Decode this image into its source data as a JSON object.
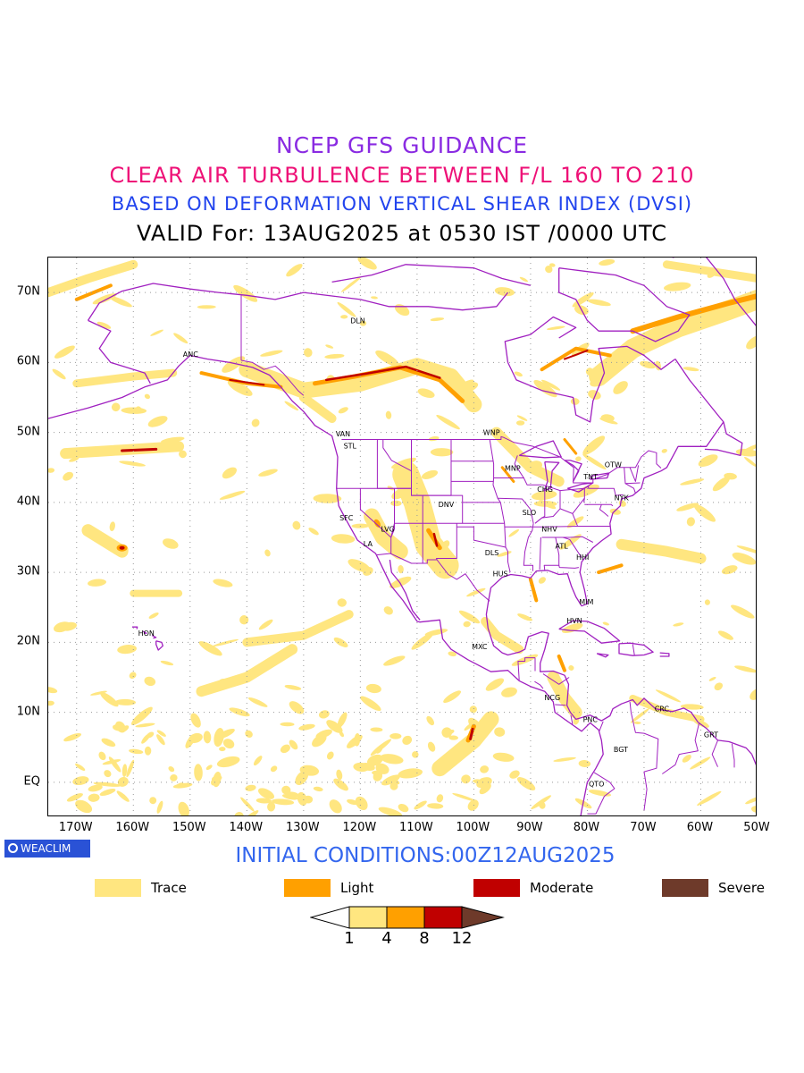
{
  "titles": {
    "line1": "NCEP GFS GUIDANCE",
    "line2": "CLEAR AIR TURBULENCE BETWEEN F/L 160 TO 210",
    "line3": "BASED ON DEFORMATION VERTICAL SHEAR INDEX (DVSI)",
    "line4": "VALID For: 13AUG2025 at 0530 IST /0000 UTC"
  },
  "colors": {
    "title1": "#8a2be2",
    "title2": "#ee1177",
    "title3": "#2244ee",
    "boundaries": "#a020c0",
    "trace": "#ffe680",
    "light": "#ffa000",
    "moderate": "#c00000",
    "severe": "#6e3a2a",
    "badge": "#2a52d6",
    "initial": "#3366ee"
  },
  "map": {
    "lon_range": [
      -175,
      -50
    ],
    "lat_range": [
      -5,
      75
    ],
    "grid": true,
    "lat_labels": [
      {
        "lat": 70,
        "text": "70N"
      },
      {
        "lat": 60,
        "text": "60N"
      },
      {
        "lat": 50,
        "text": "50N"
      },
      {
        "lat": 40,
        "text": "40N"
      },
      {
        "lat": 30,
        "text": "30N"
      },
      {
        "lat": 20,
        "text": "20N"
      },
      {
        "lat": 10,
        "text": "10N"
      },
      {
        "lat": 0,
        "text": "EQ"
      }
    ],
    "lon_labels": [
      {
        "lon": -170,
        "text": "170W"
      },
      {
        "lon": -160,
        "text": "160W"
      },
      {
        "lon": -150,
        "text": "150W"
      },
      {
        "lon": -140,
        "text": "140W"
      },
      {
        "lon": -130,
        "text": "130W"
      },
      {
        "lon": -120,
        "text": "120W"
      },
      {
        "lon": -110,
        "text": "110W"
      },
      {
        "lon": -100,
        "text": "100W"
      },
      {
        "lon": -90,
        "text": "90W"
      },
      {
        "lon": -80,
        "text": "80W"
      },
      {
        "lon": -70,
        "text": "70W"
      },
      {
        "lon": -60,
        "text": "60W"
      },
      {
        "lon": -50,
        "text": "50W"
      }
    ],
    "cities": [
      {
        "code": "DLN",
        "lon": -120.5,
        "lat": 66.0
      },
      {
        "code": "ANC",
        "lon": -150.0,
        "lat": 61.2
      },
      {
        "code": "VAN",
        "lon": -123.1,
        "lat": 49.8
      },
      {
        "code": "STL",
        "lon": -121.7,
        "lat": 48.1
      },
      {
        "code": "WNP",
        "lon": -97.1,
        "lat": 50.0
      },
      {
        "code": "MNP",
        "lon": -93.3,
        "lat": 44.9
      },
      {
        "code": "OTW",
        "lon": -75.7,
        "lat": 45.4
      },
      {
        "code": "TNT",
        "lon": -79.4,
        "lat": 43.7
      },
      {
        "code": "CHG",
        "lon": -87.6,
        "lat": 41.9
      },
      {
        "code": "NYK",
        "lon": -74.0,
        "lat": 40.7
      },
      {
        "code": "DNV",
        "lon": -105.0,
        "lat": 39.7
      },
      {
        "code": "SFC",
        "lon": -122.4,
        "lat": 37.8
      },
      {
        "code": "SLO",
        "lon": -90.2,
        "lat": 38.6
      },
      {
        "code": "LVG",
        "lon": -115.1,
        "lat": 36.2
      },
      {
        "code": "NHV",
        "lon": -86.8,
        "lat": 36.2
      },
      {
        "code": "LA",
        "lon": -118.2,
        "lat": 34.1
      },
      {
        "code": "ATL",
        "lon": -84.4,
        "lat": 33.8
      },
      {
        "code": "DLS",
        "lon": -96.8,
        "lat": 32.8
      },
      {
        "code": "HHI",
        "lon": -80.7,
        "lat": 32.2
      },
      {
        "code": "HUS",
        "lon": -95.4,
        "lat": 29.8
      },
      {
        "code": "MIM",
        "lon": -80.2,
        "lat": 25.8
      },
      {
        "code": "HVN",
        "lon": -82.4,
        "lat": 23.1
      },
      {
        "code": "HON",
        "lon": -157.9,
        "lat": 21.3
      },
      {
        "code": "MXC",
        "lon": -99.1,
        "lat": 19.4
      },
      {
        "code": "NCG",
        "lon": -86.3,
        "lat": 12.1
      },
      {
        "code": "CRC",
        "lon": -66.9,
        "lat": 10.5
      },
      {
        "code": "PNC",
        "lon": -79.5,
        "lat": 9.0
      },
      {
        "code": "GRT",
        "lon": -58.2,
        "lat": 6.8
      },
      {
        "code": "BGT",
        "lon": -74.1,
        "lat": 4.7
      },
      {
        "code": "QTO",
        "lon": -78.5,
        "lat": -0.2
      }
    ]
  },
  "legend": {
    "items": [
      {
        "label": "Trace",
        "color": "#ffe680"
      },
      {
        "label": "Light",
        "color": "#ffa000"
      },
      {
        "label": "Moderate",
        "color": "#c00000"
      },
      {
        "label": "Severe",
        "color": "#6e3a2a"
      }
    ],
    "colorbar_ticks": [
      "1",
      "4",
      "8",
      "12"
    ]
  },
  "badge": "WEACLIM",
  "initial_conditions": "INITIAL CONDITIONS:00Z12AUG2025"
}
